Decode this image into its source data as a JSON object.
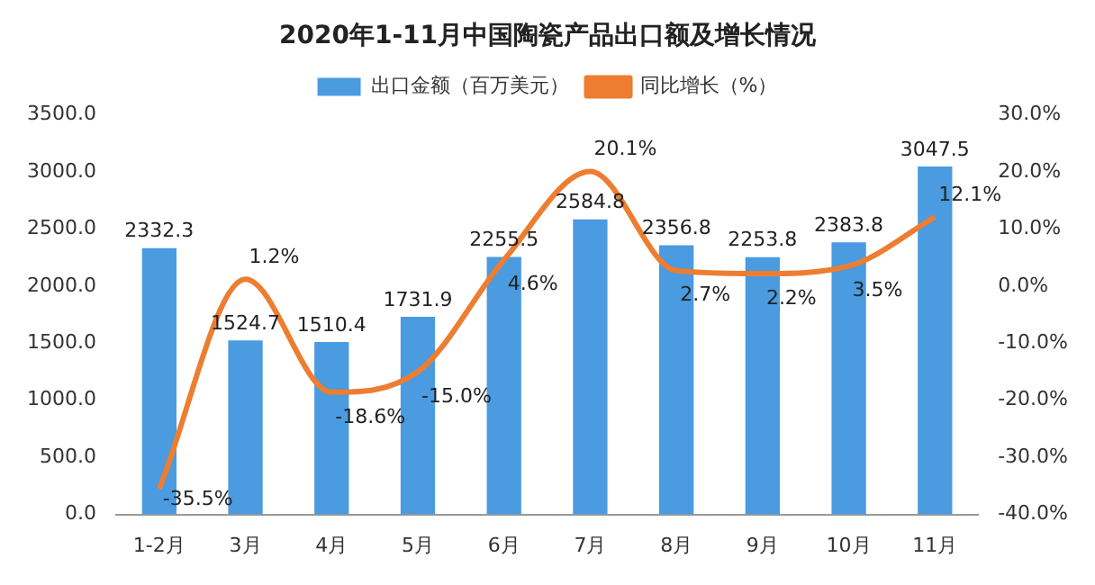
{
  "chart_data": {
    "type": "bar",
    "title": "2020年1-11月中国陶瓷产品出口额及增长情况",
    "categories": [
      "1-2月",
      "3月",
      "4月",
      "5月",
      "6月",
      "7月",
      "8月",
      "9月",
      "10月",
      "11月"
    ],
    "series": [
      {
        "name": "出口金额（百万美元）",
        "color": "#4a9be0",
        "values": [
          2332.3,
          1524.7,
          1510.4,
          1731.9,
          2255.5,
          2584.8,
          2356.8,
          2253.8,
          2383.8,
          3047.5
        ],
        "value_labels": [
          "2332.3",
          "1524.7",
          "1510.4",
          "1731.9",
          "2255.5",
          "2584.8",
          "2356.8",
          "2253.8",
          "2383.8",
          "3047.5"
        ]
      },
      {
        "name": "同比增长（%）",
        "type": "line",
        "axis": "y2",
        "color": "#ed7d31",
        "values": [
          -35.5,
          1.2,
          -18.6,
          -15.0,
          4.6,
          20.1,
          2.7,
          2.2,
          3.5,
          12.1
        ],
        "value_labels": [
          "-35.5%",
          "1.2%",
          "-18.6%",
          "-15.0%",
          "4.6%",
          "20.1%",
          "2.7%",
          "2.2%",
          "3.5%",
          "12.1%"
        ]
      }
    ],
    "ylim": [
      0,
      3500
    ],
    "yticks": [
      {
        "value": 0,
        "label": "0.0"
      },
      {
        "value": 500,
        "label": "500.0"
      },
      {
        "value": 1000,
        "label": "1000.0"
      },
      {
        "value": 1500,
        "label": "1500.0"
      },
      {
        "value": 2000,
        "label": "2000.0"
      },
      {
        "value": 2500,
        "label": "2500.0"
      },
      {
        "value": 3000,
        "label": "3000.0"
      },
      {
        "value": 3500,
        "label": "3500.0"
      }
    ],
    "y2lim": [
      -40,
      30
    ],
    "y2ticks": [
      {
        "value": -40,
        "label": "-40.0%"
      },
      {
        "value": -30,
        "label": "-30.0%"
      },
      {
        "value": -20,
        "label": "-20.0%"
      },
      {
        "value": -10,
        "label": "-10.0%"
      },
      {
        "value": 0,
        "label": "0.0%"
      },
      {
        "value": 10,
        "label": "10.0%"
      },
      {
        "value": 20,
        "label": "20.0%"
      },
      {
        "value": 30,
        "label": "30.0%"
      }
    ],
    "legend": "top",
    "grid": false,
    "marker": "none",
    "line_style": "solid"
  }
}
